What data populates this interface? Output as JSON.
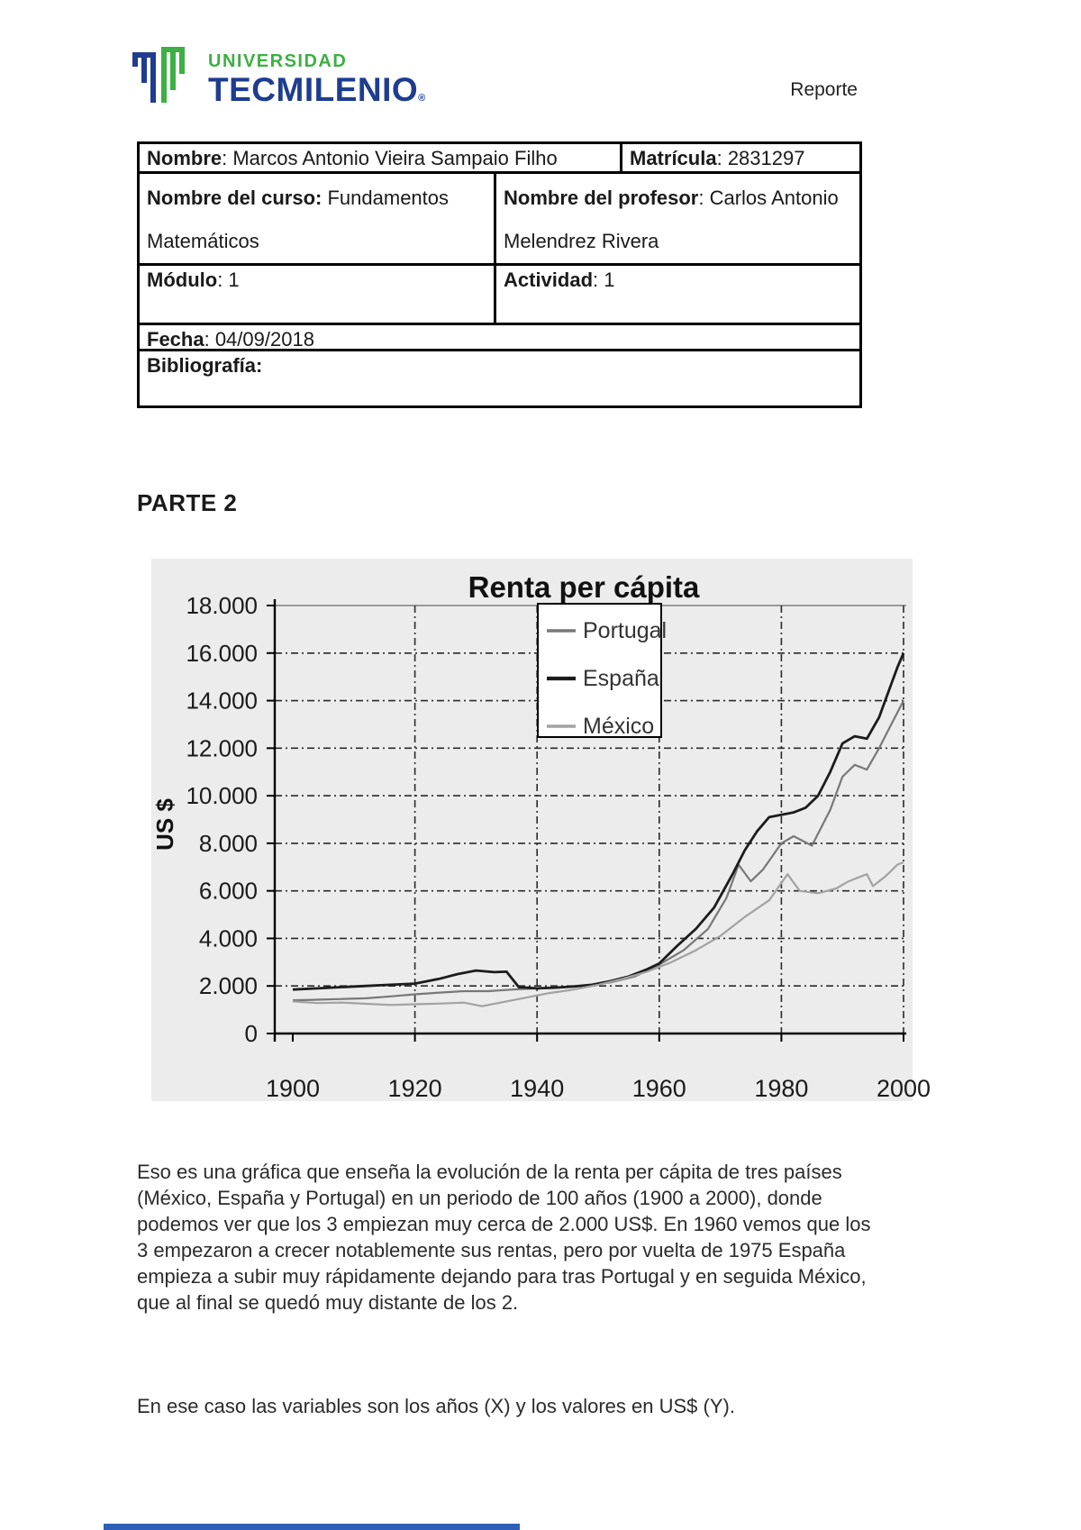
{
  "header": {
    "brand_top": "UNIVERSIDAD",
    "brand_main": "TECMILENIO",
    "brand_reg": "®",
    "doc_type": "Reporte"
  },
  "info_table": {
    "nombre_label": "Nombre",
    "nombre_value": ": Marcos Antonio Vieira Sampaio Filho",
    "matricula_label": "Matrícula",
    "matricula_value": ": 2831297",
    "curso_label": "Nombre del curso:",
    "curso_value_line1": " Fundamentos",
    "curso_value_line2": "Matemáticos",
    "profesor_label": "Nombre del profesor",
    "profesor_value_line1": ": Carlos Antonio",
    "profesor_value_line2": "Melendrez Rivera",
    "modulo_label": "Módulo",
    "modulo_value": ": 1",
    "actividad_label": "Actividad",
    "actividad_value": ": 1",
    "fecha_label": "Fecha",
    "fecha_value": ": 04/09/2018",
    "bibliografia_label": "Bibliografía:"
  },
  "section_title": "PARTE 2",
  "chart_data": {
    "type": "line",
    "title": "Renta per cápita",
    "xlabel": "",
    "ylabel": "US $",
    "ylim": [
      0,
      18000
    ],
    "xlim": [
      1897,
      2003
    ],
    "grid": "dash-dot, horizontal and vertical",
    "legend_position": "top-center inside plot, boxed",
    "x_ticks": [
      1900,
      1920,
      1940,
      1960,
      1980,
      2000
    ],
    "x_tick_labels": [
      "1900",
      "1920",
      "1940",
      "1960",
      "1980",
      "2000"
    ],
    "y_tick_values": [
      0,
      2000,
      4000,
      6000,
      8000,
      10000,
      12000,
      14000,
      16000,
      18000
    ],
    "y_tick_labels": [
      "0",
      "2.000",
      "4.000",
      "6.000",
      "8.000",
      "10.000",
      "12.000",
      "14.000",
      "16.000",
      "18.000"
    ],
    "series": [
      {
        "name": "Portugal",
        "color": "#787878",
        "width": 2.2,
        "x": [
          1900,
          1904,
          1908,
          1912,
          1916,
          1920,
          1924,
          1928,
          1932,
          1936,
          1940,
          1944,
          1948,
          1952,
          1956,
          1960,
          1964,
          1968,
          1971,
          1973,
          1975,
          1977,
          1980,
          1982,
          1985,
          1988,
          1990,
          1992,
          1994,
          1996,
          1998,
          2000
        ],
        "values": [
          1400,
          1420,
          1450,
          1480,
          1560,
          1650,
          1720,
          1780,
          1780,
          1850,
          1900,
          1950,
          2020,
          2150,
          2400,
          2900,
          3500,
          4400,
          5700,
          7100,
          6400,
          6900,
          8000,
          8300,
          7900,
          9400,
          10800,
          11300,
          11100,
          12000,
          13000,
          14000
        ]
      },
      {
        "name": "España",
        "color": "#1c1c1c",
        "width": 2.8,
        "x": [
          1900,
          1904,
          1908,
          1912,
          1916,
          1920,
          1924,
          1927,
          1930,
          1933,
          1935,
          1937,
          1940,
          1943,
          1946,
          1949,
          1952,
          1955,
          1958,
          1960,
          1963,
          1966,
          1969,
          1972,
          1974,
          1976,
          1978,
          1980,
          1982,
          1984,
          1986,
          1988,
          1990,
          1992,
          1994,
          1996,
          1998,
          1999,
          2000
        ],
        "values": [
          1850,
          1900,
          1950,
          2000,
          2050,
          2100,
          2300,
          2500,
          2650,
          2580,
          2600,
          1950,
          1900,
          1930,
          1980,
          2050,
          2200,
          2400,
          2700,
          2950,
          3700,
          4400,
          5300,
          6700,
          7700,
          8500,
          9100,
          9200,
          9300,
          9500,
          10000,
          11000,
          12200,
          12500,
          12400,
          13300,
          14700,
          15400,
          16000
        ]
      },
      {
        "name": "México",
        "color": "#a2a2a2",
        "width": 2.2,
        "x": [
          1900,
          1904,
          1908,
          1912,
          1916,
          1920,
          1924,
          1928,
          1931,
          1934,
          1938,
          1942,
          1946,
          1950,
          1954,
          1958,
          1962,
          1966,
          1970,
          1974,
          1978,
          1981,
          1983,
          1986,
          1989,
          1991,
          1993,
          1994,
          1995,
          1997,
          1999,
          2000
        ],
        "values": [
          1350,
          1280,
          1300,
          1250,
          1200,
          1230,
          1260,
          1300,
          1150,
          1300,
          1500,
          1700,
          1850,
          2050,
          2300,
          2600,
          3000,
          3500,
          4100,
          4900,
          5600,
          6700,
          6000,
          5900,
          6100,
          6400,
          6600,
          6700,
          6200,
          6600,
          7100,
          7200
        ]
      }
    ]
  },
  "paragraphs": {
    "p1": "Eso es una gráfica que enseña la evolución de la renta per cápita de tres países (México, España y Portugal) en un periodo de 100 años (1900 a 2000), donde podemos ver que los 3 empiezan muy cerca de 2.000 US$. En 1960 vemos que los 3 empezaron a crecer notablemente sus rentas, pero por vuelta de 1975 España empieza a subir muy rápidamente dejando para tras Portugal y en seguida México, que al final se quedó muy distante de los 2.",
    "p2": "En ese caso las variables son los años (X) y los valores en US$ (Y)."
  }
}
